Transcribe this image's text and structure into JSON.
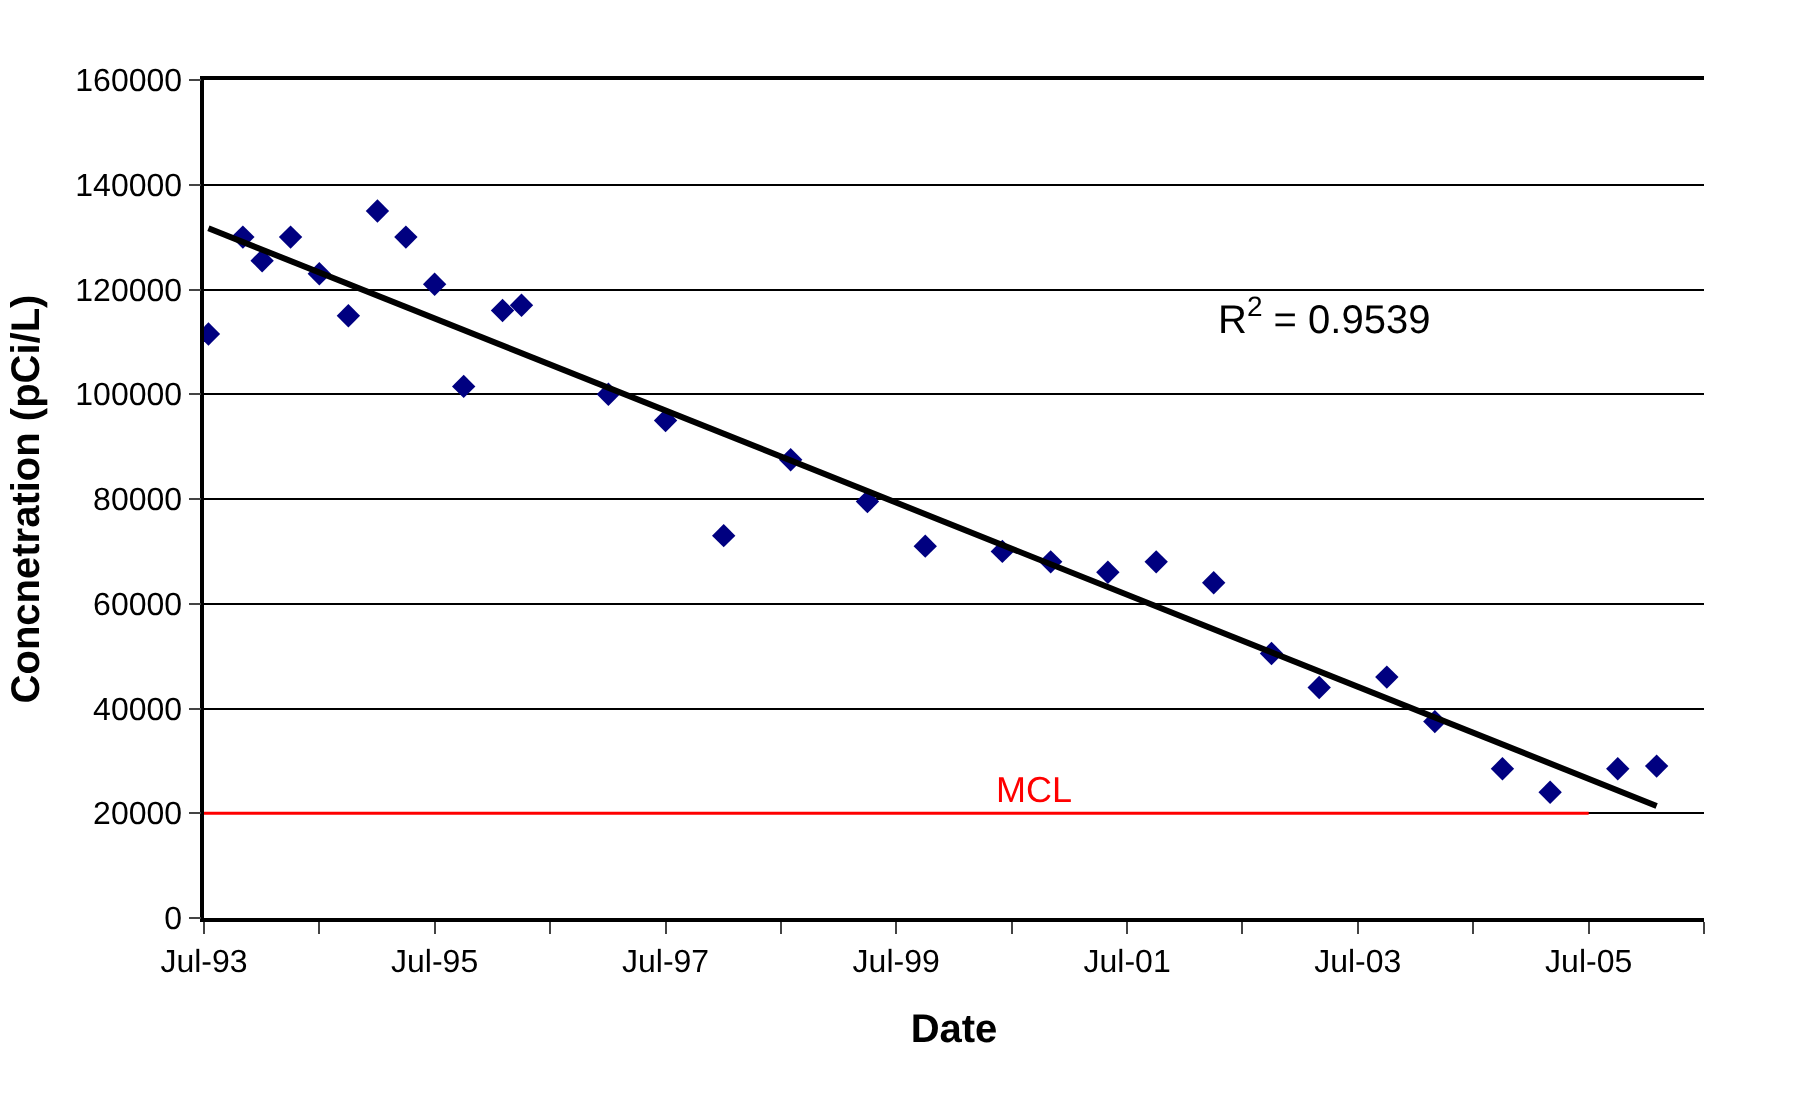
{
  "chart_data": {
    "type": "scatter",
    "xlabel": "Date",
    "ylabel": "Concnetration (pCi/L)",
    "xlim": [
      "1993-07-01",
      "2006-07-01"
    ],
    "ylim": [
      0,
      160000
    ],
    "xticks": [
      {
        "value": "1993-07-01",
        "label": "Jul-93"
      },
      {
        "value": "1994-07-01",
        "label": null
      },
      {
        "value": "1995-07-01",
        "label": "Jul-95"
      },
      {
        "value": "1996-07-01",
        "label": null
      },
      {
        "value": "1997-07-01",
        "label": "Jul-97"
      },
      {
        "value": "1998-07-01",
        "label": null
      },
      {
        "value": "1999-07-01",
        "label": "Jul-99"
      },
      {
        "value": "2000-07-01",
        "label": null
      },
      {
        "value": "2001-07-01",
        "label": "Jul-01"
      },
      {
        "value": "2002-07-01",
        "label": null
      },
      {
        "value": "2003-07-01",
        "label": "Jul-03"
      },
      {
        "value": "2004-07-01",
        "label": null
      },
      {
        "value": "2005-07-01",
        "label": "Jul-05"
      },
      {
        "value": "2006-07-01",
        "label": null
      }
    ],
    "yticks": [
      0,
      20000,
      40000,
      60000,
      80000,
      100000,
      120000,
      140000,
      160000
    ],
    "grid": "y",
    "series": [
      {
        "marker": "diamond",
        "color": "#000080",
        "x": [
          "1993-07-15",
          "1993-11-01",
          "1994-01-01",
          "1994-04-01",
          "1994-07-01",
          "1994-10-01",
          "1995-01-01",
          "1995-04-01",
          "1995-07-01",
          "1995-10-01",
          "1996-02-01",
          "1996-04-01",
          "1997-01-01",
          "1997-07-01",
          "1998-01-01",
          "1998-08-01",
          "1999-04-01",
          "1999-10-01",
          "2000-06-01",
          "2000-11-01",
          "2001-05-01",
          "2001-10-01",
          "2002-04-01",
          "2002-10-01",
          "2003-03-01",
          "2003-10-01",
          "2004-03-01",
          "2004-10-01",
          "2005-03-01",
          "2005-10-01",
          "2006-02-01"
        ],
        "values": [
          111500,
          130000,
          125500,
          130000,
          123000,
          115000,
          135000,
          130000,
          121000,
          101500,
          116000,
          117000,
          100000,
          95000,
          73000,
          87500,
          79500,
          71000,
          70000,
          68000,
          66000,
          68000,
          64000,
          50500,
          44000,
          46000,
          37500,
          28500,
          24000,
          28500,
          29000
        ]
      },
      {
        "type": "line",
        "marker": "none",
        "color": "#000000",
        "x": [
          "1993-07-15",
          "2006-02-01"
        ],
        "values": [
          131700,
          21400
        ]
      },
      {
        "type": "line",
        "marker": "none",
        "name": "MCL",
        "color": "#ff0000",
        "x": [
          "1993-07-01",
          "2005-07-01"
        ],
        "values": [
          20000,
          20000
        ]
      }
    ],
    "annotations": [
      "R$^{2}$ = 0.9539"
    ]
  }
}
